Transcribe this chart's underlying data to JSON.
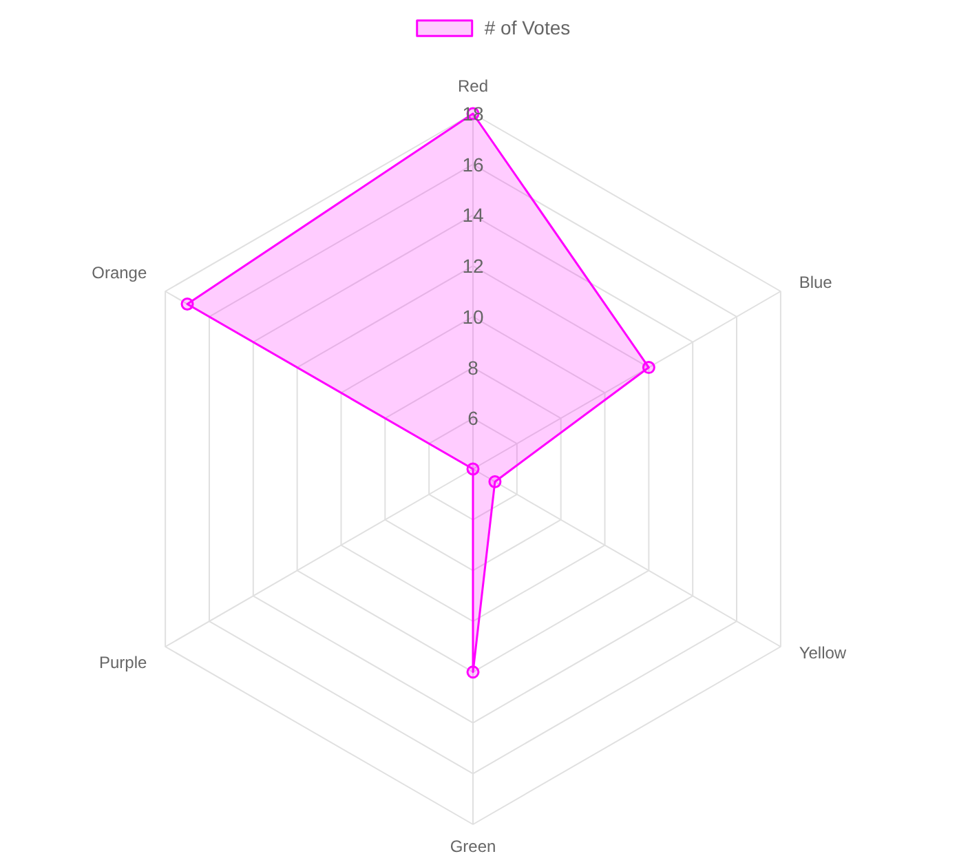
{
  "chart_data": {
    "type": "radar",
    "categories": [
      "Red",
      "Blue",
      "Yellow",
      "Green",
      "Purple",
      "Orange"
    ],
    "series": [
      {
        "name": "# of Votes",
        "color": "#ff00ff",
        "values": [
          18,
          12,
          5,
          12,
          4,
          17
        ]
      }
    ],
    "ylim": [
      4,
      18
    ],
    "yticks": [
      6,
      8,
      10,
      12,
      14,
      16,
      18
    ],
    "grid": true,
    "legend": "top",
    "marker": "circle"
  }
}
